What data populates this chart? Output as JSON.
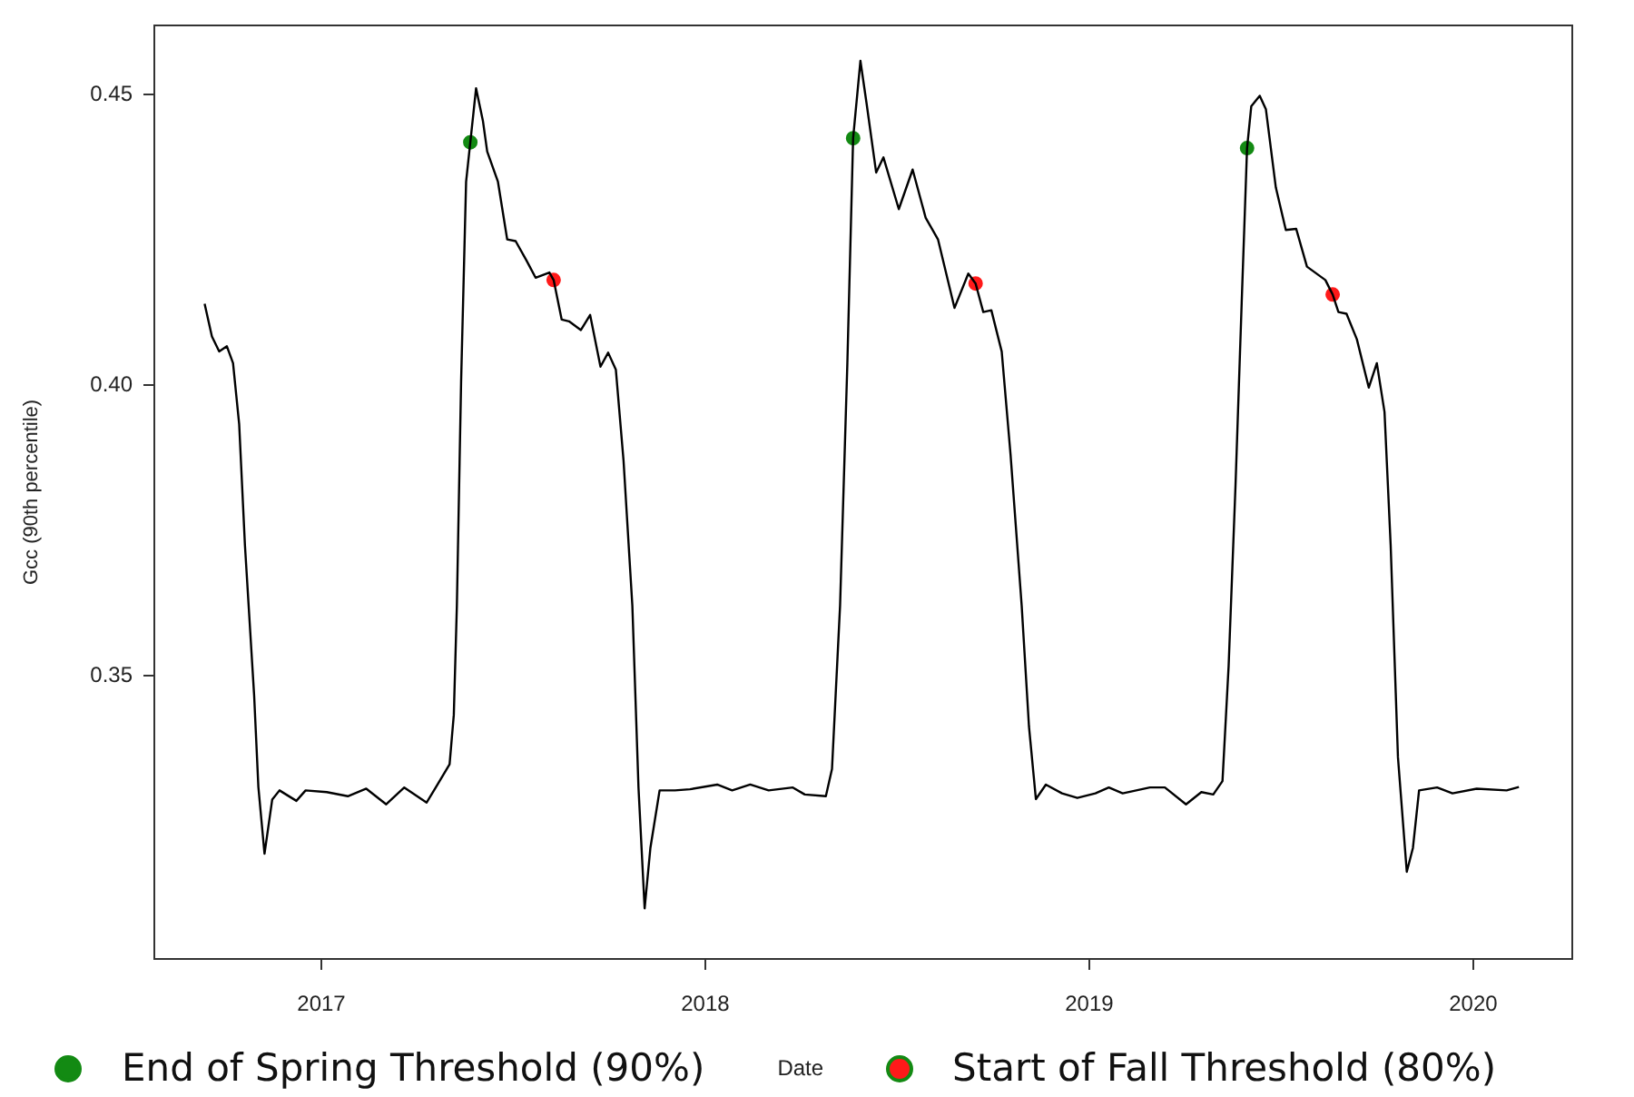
{
  "chart_data": {
    "type": "line",
    "xlabel": "Date",
    "ylabel": "Gcc (90th percentile)",
    "xlim": [
      2016.565,
      2020.258
    ],
    "xticks": [
      2017,
      2018,
      2019,
      2020
    ],
    "ylim": [
      0.3013,
      0.4619
    ],
    "yticks": [
      {
        "value": 0.35,
        "label": "0.35"
      },
      {
        "value": 0.4,
        "label": "0.40"
      },
      {
        "value": 0.45,
        "label": "0.45"
      }
    ],
    "grid": false,
    "legend": "bottom",
    "line_style": "solid",
    "series": [
      {
        "color": "#000000",
        "marker": "none",
        "x": [
          2016.696,
          2016.715,
          2016.734,
          2016.754,
          2016.77,
          2016.786,
          2016.801,
          2016.825,
          2016.836,
          2016.852,
          2016.872,
          2016.891,
          2016.935,
          2016.959,
          2017.014,
          2017.069,
          2017.117,
          2017.169,
          2017.216,
          2017.274,
          2017.298,
          2017.334,
          2017.345,
          2017.353,
          2017.364,
          2017.377,
          2017.388,
          2017.403,
          2017.421,
          2017.432,
          2017.46,
          2017.484,
          2017.506,
          2017.534,
          2017.558,
          2017.594,
          2017.605,
          2017.626,
          2017.645,
          2017.676,
          2017.7,
          2017.727,
          2017.747,
          2017.767,
          2017.787,
          2017.81,
          2017.826,
          2017.842,
          2017.857,
          2017.881,
          2017.921,
          2017.96,
          2018.031,
          2018.07,
          2018.117,
          2018.165,
          2018.228,
          2018.259,
          2018.314,
          2018.33,
          2018.351,
          2018.37,
          2018.385,
          2018.404,
          2018.42,
          2018.445,
          2018.464,
          2018.504,
          2018.54,
          2018.574,
          2018.606,
          2018.649,
          2018.685,
          2018.704,
          2018.724,
          2018.745,
          2018.772,
          2018.795,
          2018.824,
          2018.843,
          2018.861,
          2018.887,
          2018.929,
          2018.969,
          2019.016,
          2019.051,
          2019.087,
          2019.158,
          2019.197,
          2019.252,
          2019.292,
          2019.323,
          2019.347,
          2019.363,
          2019.381,
          2019.397,
          2019.411,
          2019.422,
          2019.444,
          2019.46,
          2019.486,
          2019.512,
          2019.539,
          2019.567,
          2019.615,
          2019.634,
          2019.649,
          2019.67,
          2019.697,
          2019.728,
          2019.749,
          2019.769,
          2019.785,
          2019.804,
          2019.827,
          2019.843,
          2019.859,
          2019.906,
          2019.946,
          2020.009,
          2020.087,
          2020.119
        ],
        "values": [
          0.414,
          0.4084,
          0.4058,
          0.4067,
          0.4038,
          0.3933,
          0.3725,
          0.3466,
          0.3309,
          0.3194,
          0.3287,
          0.3303,
          0.3285,
          0.3303,
          0.33,
          0.3293,
          0.3306,
          0.3279,
          0.3308,
          0.3282,
          0.3308,
          0.3348,
          0.3433,
          0.3621,
          0.4006,
          0.435,
          0.4418,
          0.4511,
          0.4454,
          0.4402,
          0.435,
          0.4251,
          0.4248,
          0.4215,
          0.4185,
          0.4194,
          0.4181,
          0.4113,
          0.411,
          0.4095,
          0.4121,
          0.4032,
          0.4056,
          0.4027,
          0.3871,
          0.3621,
          0.3308,
          0.31,
          0.3204,
          0.3303,
          0.3303,
          0.3305,
          0.3313,
          0.3303,
          0.3313,
          0.3303,
          0.3308,
          0.3296,
          0.3293,
          0.334,
          0.3621,
          0.4038,
          0.4425,
          0.4558,
          0.4485,
          0.4366,
          0.4392,
          0.4303,
          0.4371,
          0.4288,
          0.4251,
          0.4133,
          0.4192,
          0.4175,
          0.4126,
          0.4129,
          0.4058,
          0.3881,
          0.3621,
          0.3413,
          0.3288,
          0.3313,
          0.3298,
          0.329,
          0.3298,
          0.3308,
          0.3298,
          0.3308,
          0.3308,
          0.3279,
          0.33,
          0.3296,
          0.3319,
          0.3517,
          0.3829,
          0.4142,
          0.4408,
          0.448,
          0.4498,
          0.4475,
          0.434,
          0.4267,
          0.4269,
          0.4204,
          0.4181,
          0.4156,
          0.4126,
          0.4123,
          0.4079,
          0.3996,
          0.4038,
          0.3954,
          0.3725,
          0.336,
          0.3163,
          0.3204,
          0.3303,
          0.3308,
          0.3298,
          0.3306,
          0.3303,
          0.3309
        ]
      },
      {
        "type": "scatter",
        "name": "End of Spring Threshold (90%)",
        "color": "#138a13",
        "marker": "circle",
        "x": [
          2017.388,
          2018.385,
          2019.411
        ],
        "values": [
          0.4418,
          0.4425,
          0.4408
        ]
      },
      {
        "type": "scatter",
        "name": "Start of Fall Threshold (80%)",
        "color": "#ff1a1a",
        "marker": "circle",
        "x": [
          2017.605,
          2018.704,
          2019.634
        ],
        "values": [
          0.4181,
          0.4175,
          0.4156
        ]
      }
    ]
  }
}
